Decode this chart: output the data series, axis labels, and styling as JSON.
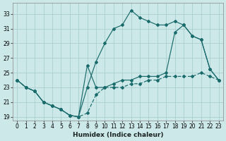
{
  "xlabel": "Humidex (Indice chaleur)",
  "background_color": "#cce8e8",
  "grid_color": "#aacece",
  "line_color": "#1a6b6b",
  "xlim": [
    -0.5,
    23.5
  ],
  "ylim": [
    18.5,
    34.5
  ],
  "yticks": [
    19,
    21,
    23,
    25,
    27,
    29,
    31,
    33
  ],
  "xticks": [
    0,
    1,
    2,
    3,
    4,
    5,
    6,
    7,
    8,
    9,
    10,
    11,
    12,
    13,
    14,
    15,
    16,
    17,
    18,
    19,
    20,
    21,
    22,
    23
  ],
  "curve1_x": [
    0,
    1,
    2,
    3,
    4,
    5,
    6,
    7,
    8,
    9,
    10,
    11,
    12,
    13,
    14,
    15,
    16,
    17,
    18,
    19,
    20,
    21,
    22,
    23
  ],
  "curve1_y": [
    24,
    23,
    22.5,
    21,
    20.5,
    20,
    19.2,
    19,
    19.5,
    22,
    23,
    23,
    23,
    23.5,
    23.5,
    24,
    24,
    24.5,
    24.5,
    24.5,
    24.5,
    25,
    24.5,
    24
  ],
  "curve2_x": [
    0,
    1,
    2,
    3,
    4,
    5,
    6,
    7,
    8,
    9,
    10,
    11,
    12,
    13,
    14,
    15,
    16,
    17,
    18,
    19,
    20,
    21,
    22,
    23
  ],
  "curve2_y": [
    24,
    23,
    22.5,
    21,
    20.5,
    20,
    19.2,
    19,
    23,
    26.5,
    29,
    31,
    31.5,
    33.5,
    32.5,
    32,
    31.5,
    31.5,
    32,
    31.5,
    30,
    29.5,
    25.5,
    24
  ],
  "curve3_x": [
    0,
    1,
    2,
    3,
    4,
    5,
    6,
    7,
    8,
    9,
    10,
    11,
    12,
    13,
    14,
    15,
    16,
    17,
    18,
    19,
    20,
    21,
    22,
    23
  ],
  "curve3_y": [
    24,
    23,
    22.5,
    21,
    20.5,
    20,
    19.2,
    19,
    26,
    23,
    23,
    23.5,
    24,
    24,
    24.5,
    24.5,
    24.5,
    25,
    30.5,
    31.5,
    30,
    29.5,
    25.5,
    24
  ]
}
